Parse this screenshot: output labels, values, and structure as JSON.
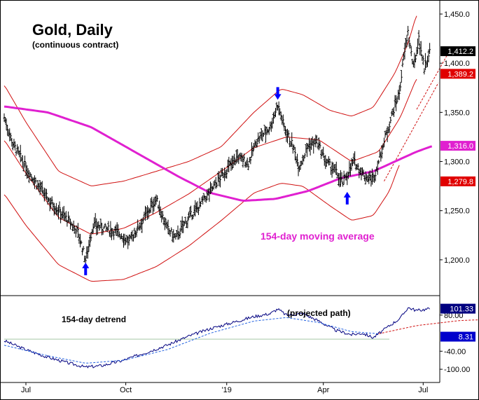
{
  "chart_data": [
    {
      "type": "bar",
      "style": "OHLC daily bars with moving average and cycle channels",
      "title": "Gold, Daily",
      "subtitle": "(continuous contract)",
      "ylim": [
        1165,
        1460
      ],
      "y_ticks": [
        "1,450.0",
        "1,400.0",
        "1,350.0",
        "1,300.0",
        "1,250.0",
        "1,200.0"
      ],
      "y_tick_values": [
        1450,
        1400,
        1350,
        1300,
        1250,
        1200
      ],
      "x_ticks": [
        "Jul",
        "Oct",
        "'19",
        "Apr",
        "Jul"
      ],
      "x_tick_index": [
        20,
        112,
        205,
        294,
        386
      ],
      "n_bars": 400,
      "price_keypoints": [
        [
          0,
          1345
        ],
        [
          8,
          1318
        ],
        [
          22,
          1290
        ],
        [
          40,
          1262
        ],
        [
          55,
          1245
        ],
        [
          68,
          1228
        ],
        [
          75,
          1200
        ],
        [
          82,
          1236
        ],
        [
          92,
          1232
        ],
        [
          105,
          1228
        ],
        [
          115,
          1218
        ],
        [
          125,
          1236
        ],
        [
          140,
          1262
        ],
        [
          150,
          1232
        ],
        [
          158,
          1222
        ],
        [
          168,
          1240
        ],
        [
          180,
          1255
        ],
        [
          190,
          1270
        ],
        [
          200,
          1285
        ],
        [
          215,
          1305
        ],
        [
          225,
          1298
        ],
        [
          232,
          1320
        ],
        [
          245,
          1335
        ],
        [
          252,
          1358
        ],
        [
          258,
          1335
        ],
        [
          265,
          1318
        ],
        [
          272,
          1295
        ],
        [
          280,
          1316
        ],
        [
          288,
          1320
        ],
        [
          296,
          1300
        ],
        [
          305,
          1290
        ],
        [
          312,
          1278
        ],
        [
          322,
          1300
        ],
        [
          332,
          1285
        ],
        [
          340,
          1282
        ],
        [
          345,
          1300
        ],
        [
          352,
          1328
        ],
        [
          358,
          1350
        ],
        [
          364,
          1370
        ],
        [
          368,
          1405
        ],
        [
          372,
          1432
        ],
        [
          377,
          1395
        ],
        [
          382,
          1425
        ],
        [
          387,
          1395
        ],
        [
          392,
          1412
        ]
      ],
      "moving_average": {
        "label": "154-day moving average",
        "value_label": "1,316.0",
        "color": "#e020d0",
        "points": [
          [
            0,
            1356
          ],
          [
            40,
            1350
          ],
          [
            80,
            1335
          ],
          [
            120,
            1310
          ],
          [
            160,
            1285
          ],
          [
            190,
            1268
          ],
          [
            220,
            1260
          ],
          [
            250,
            1262
          ],
          [
            280,
            1270
          ],
          [
            310,
            1283
          ],
          [
            340,
            1290
          ],
          [
            360,
            1300
          ],
          [
            380,
            1310
          ],
          [
            395,
            1316
          ]
        ]
      },
      "upper_band": {
        "color": "#d01010",
        "points": [
          [
            0,
            1378
          ],
          [
            20,
            1340
          ],
          [
            50,
            1290
          ],
          [
            80,
            1275
          ],
          [
            110,
            1280
          ],
          [
            140,
            1290
          ],
          [
            170,
            1300
          ],
          [
            200,
            1315
          ],
          [
            230,
            1350
          ],
          [
            255,
            1374
          ],
          [
            275,
            1368
          ],
          [
            300,
            1352
          ],
          [
            320,
            1346
          ],
          [
            340,
            1355
          ],
          [
            360,
            1390
          ],
          [
            372,
            1420
          ],
          [
            380,
            1450
          ]
        ]
      },
      "lower_band": {
        "color": "#d01010",
        "points": [
          [
            0,
            1267
          ],
          [
            20,
            1235
          ],
          [
            50,
            1195
          ],
          [
            80,
            1178
          ],
          [
            110,
            1180
          ],
          [
            140,
            1193
          ],
          [
            170,
            1214
          ],
          [
            200,
            1240
          ],
          [
            230,
            1268
          ],
          [
            255,
            1278
          ],
          [
            275,
            1275
          ],
          [
            300,
            1255
          ],
          [
            320,
            1240
          ],
          [
            340,
            1245
          ],
          [
            355,
            1270
          ],
          [
            365,
            1300
          ]
        ]
      },
      "middle_band": {
        "color": "#d01010",
        "points": [
          [
            0,
            1322
          ],
          [
            20,
            1288
          ],
          [
            50,
            1243
          ],
          [
            80,
            1226
          ],
          [
            110,
            1232
          ],
          [
            140,
            1248
          ],
          [
            170,
            1267
          ],
          [
            200,
            1290
          ],
          [
            230,
            1314
          ],
          [
            260,
            1325
          ],
          [
            290,
            1322
          ],
          [
            320,
            1300
          ],
          [
            345,
            1310
          ],
          [
            365,
            1345
          ],
          [
            380,
            1385
          ]
        ]
      },
      "projection": {
        "color": "#d01010",
        "upper_points": [
          [
            380,
            1353
          ],
          [
            410,
            1412
          ]
        ],
        "lower_points": [
          [
            350,
            1280
          ],
          [
            400,
            1380
          ]
        ]
      },
      "price_labels": [
        {
          "text": "1,412.2",
          "value": 1412.2,
          "bg": "#000000",
          "fg": "#ffffff"
        },
        {
          "text": "1,389.2",
          "value": 1389.2,
          "bg": "#e00000",
          "fg": "#ffffff"
        },
        {
          "text": "1,316.0",
          "value": 1316.0,
          "bg": "#e020d0",
          "fg": "#ffffff"
        },
        {
          "text": "1,279.8",
          "value": 1279.8,
          "bg": "#e00000",
          "fg": "#ffffff"
        }
      ],
      "cycle_markers": [
        {
          "index": 75,
          "value": 1200,
          "direction": "up",
          "color": "#0000ff"
        },
        {
          "index": 252,
          "value": 1360,
          "direction": "down",
          "color": "#0000ff"
        },
        {
          "index": 316,
          "value": 1272,
          "direction": "up",
          "color": "#0000ff"
        }
      ]
    },
    {
      "type": "line",
      "title": "154-day detrend",
      "annotation": "(projected path)",
      "ylim": [
        -130,
        140
      ],
      "y_ticks": [
        "80.00",
        "-40.00",
        "-100.00"
      ],
      "y_tick_values": [
        80,
        -40,
        -100
      ],
      "zero_line": 0,
      "reference_level": 8.31,
      "series": [
        {
          "name": "detrend",
          "color": "#000080",
          "points": [
            [
              0,
              -5
            ],
            [
              20,
              -35
            ],
            [
              40,
              -60
            ],
            [
              60,
              -80
            ],
            [
              75,
              -93
            ],
            [
              90,
              -88
            ],
            [
              110,
              -70
            ],
            [
              130,
              -45
            ],
            [
              150,
              -20
            ],
            [
              170,
              10
            ],
            [
              190,
              35
            ],
            [
              210,
              55
            ],
            [
              230,
              75
            ],
            [
              245,
              85
            ],
            [
              252,
              100
            ],
            [
              260,
              80
            ],
            [
              275,
              85
            ],
            [
              290,
              60
            ],
            [
              305,
              30
            ],
            [
              320,
              15
            ],
            [
              330,
              20
            ],
            [
              340,
              5
            ],
            [
              355,
              45
            ],
            [
              365,
              70
            ],
            [
              372,
              105
            ],
            [
              380,
              95
            ],
            [
              392,
              101
            ]
          ]
        },
        {
          "name": "smoothed",
          "color": "#2060e0",
          "points": [
            [
              0,
              -20
            ],
            [
              40,
              -55
            ],
            [
              75,
              -80
            ],
            [
              110,
              -70
            ],
            [
              150,
              -35
            ],
            [
              190,
              20
            ],
            [
              230,
              60
            ],
            [
              260,
              72
            ],
            [
              290,
              55
            ],
            [
              320,
              25
            ],
            [
              345,
              18
            ]
          ]
        },
        {
          "name": "projected path",
          "color": "#d01010",
          "points": [
            [
              345,
              18
            ],
            [
              380,
              45
            ],
            [
              420,
              62
            ],
            [
              445,
              65
            ]
          ]
        }
      ],
      "value_labels": [
        {
          "text": "101.33",
          "value": 101.33,
          "bg": "#000080",
          "fg": "#ffffff"
        },
        {
          "text": "8.31",
          "value": 8.31,
          "bg": "#0000cc",
          "fg": "#ffffff"
        }
      ]
    }
  ]
}
